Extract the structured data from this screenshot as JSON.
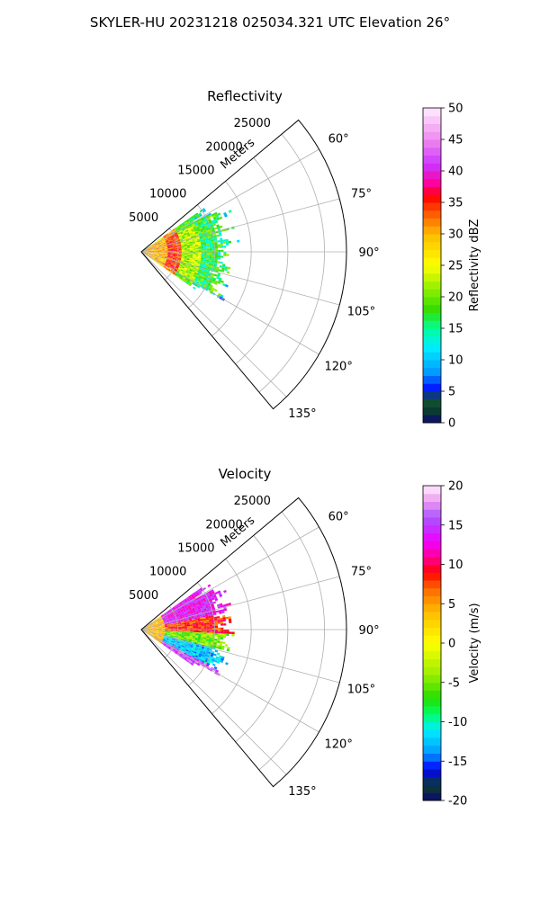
{
  "suptitle": "SKYLER-HU  20231218  025034.321 UTC Elevation 26°",
  "chart_data": [
    {
      "type": "heatmap",
      "projection": "polar-sector",
      "title": "Reflectivity",
      "r_label": "Meters",
      "r_ticks": [
        5000,
        10000,
        15000,
        20000,
        25000
      ],
      "rlim": [
        0,
        28000
      ],
      "theta_ticks_deg": [
        60,
        75,
        90,
        105,
        120,
        135
      ],
      "theta_range_deg": [
        50,
        140
      ],
      "grid": true,
      "data_extent": {
        "theta_range_deg": [
          55,
          125
        ],
        "max_range_m": 13500
      },
      "field_samples": [
        {
          "r_m": 2000,
          "value": 28
        },
        {
          "r_m": 5000,
          "value": 36
        },
        {
          "r_m": 8000,
          "value": 22
        },
        {
          "r_m": 12000,
          "value": 17
        }
      ],
      "colorbar": {
        "label": "Reflectivity dBZ",
        "min": 0,
        "max": 50,
        "ticks": [
          0,
          5,
          10,
          15,
          20,
          25,
          30,
          35,
          40,
          45,
          50
        ],
        "stops": [
          [
            0,
            "#0a0a6e"
          ],
          [
            2,
            "#0b3d2e"
          ],
          [
            4,
            "#145a32"
          ],
          [
            5,
            "#0000ff"
          ],
          [
            8,
            "#0099ff"
          ],
          [
            12,
            "#00eeff"
          ],
          [
            15,
            "#00ff99"
          ],
          [
            18,
            "#33dd00"
          ],
          [
            21,
            "#88ee00"
          ],
          [
            25,
            "#ffff00"
          ],
          [
            30,
            "#ffbb00"
          ],
          [
            34,
            "#ff4400"
          ],
          [
            36,
            "#ff0000"
          ],
          [
            38,
            "#ff0099"
          ],
          [
            41,
            "#cc33ff"
          ],
          [
            45,
            "#ee88ee"
          ],
          [
            50,
            "#ffeeff"
          ]
        ]
      }
    },
    {
      "type": "heatmap",
      "projection": "polar-sector",
      "title": "Velocity",
      "r_label": "Meters",
      "r_ticks": [
        5000,
        10000,
        15000,
        20000,
        25000
      ],
      "rlim": [
        0,
        28000
      ],
      "theta_ticks_deg": [
        60,
        75,
        90,
        105,
        120,
        135
      ],
      "theta_range_deg": [
        50,
        140
      ],
      "grid": true,
      "data_extent": {
        "theta_range_deg": [
          55,
          125
        ],
        "max_range_m": 13500
      },
      "field_samples": [
        {
          "theta_deg": 70,
          "value": 13
        },
        {
          "theta_deg": 88,
          "value": 8
        },
        {
          "theta_deg": 98,
          "value": -5
        },
        {
          "theta_deg": 112,
          "value": -14
        },
        {
          "theta_deg": 122,
          "value": 15
        }
      ],
      "colorbar": {
        "label": "Velocity (m/s)",
        "min": -20,
        "max": 20,
        "ticks": [
          -20,
          -15,
          -10,
          -5,
          0,
          5,
          10,
          15,
          20
        ],
        "stops": [
          [
            -20,
            "#0a0a6e"
          ],
          [
            -18,
            "#0b3d2e"
          ],
          [
            -16,
            "#0000ff"
          ],
          [
            -14,
            "#0099ff"
          ],
          [
            -11,
            "#00eeff"
          ],
          [
            -9,
            "#00ff66"
          ],
          [
            -7,
            "#22dd00"
          ],
          [
            -4,
            "#99ee00"
          ],
          [
            0,
            "#ffff00"
          ],
          [
            4,
            "#ffbb00"
          ],
          [
            7,
            "#ff6600"
          ],
          [
            9,
            "#ff0000"
          ],
          [
            11,
            "#ff0099"
          ],
          [
            13,
            "#ee00ff"
          ],
          [
            16,
            "#aa55ff"
          ],
          [
            18,
            "#ee99ee"
          ],
          [
            20,
            "#ffeeff"
          ]
        ]
      }
    }
  ]
}
